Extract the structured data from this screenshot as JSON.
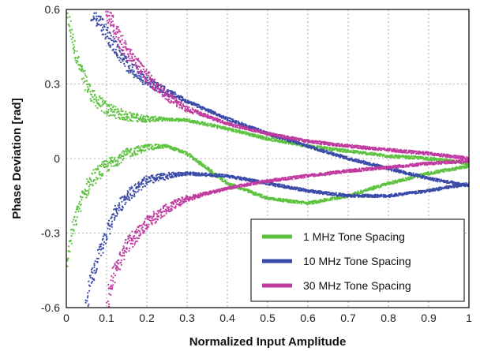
{
  "chart_data": {
    "type": "scatter",
    "title": "",
    "xlabel": "Normalized Input Amplitude",
    "ylabel": "Phase Deviation [rad]",
    "xlim": [
      0,
      1
    ],
    "ylim": [
      -0.6,
      0.6
    ],
    "xticks": [
      "0",
      "0.1",
      "0.2",
      "0.3",
      "0.4",
      "0.5",
      "0.6",
      "0.7",
      "0.8",
      "0.9",
      "1"
    ],
    "yticks": [
      "0.6",
      "0.3",
      "0",
      "-0.3",
      "-0.6"
    ],
    "grid": true,
    "legend_position": "bottom-right",
    "series": [
      {
        "name": "1 MHz Tone Spacing",
        "color": "#5cc23e",
        "upper": [
          [
            0.0,
            0.6
          ],
          [
            0.01,
            0.52
          ],
          [
            0.02,
            0.45
          ],
          [
            0.03,
            0.38
          ],
          [
            0.05,
            0.3
          ],
          [
            0.07,
            0.24
          ],
          [
            0.1,
            0.2
          ],
          [
            0.15,
            0.17
          ],
          [
            0.2,
            0.16
          ],
          [
            0.3,
            0.155
          ],
          [
            0.4,
            0.12
          ],
          [
            0.5,
            0.08
          ],
          [
            0.6,
            0.05
          ],
          [
            0.7,
            0.03
          ],
          [
            0.8,
            0.01
          ],
          [
            0.9,
            0.0
          ],
          [
            1.0,
            -0.02
          ]
        ],
        "lower": [
          [
            0.0,
            -0.42
          ],
          [
            0.01,
            -0.34
          ],
          [
            0.02,
            -0.26
          ],
          [
            0.03,
            -0.2
          ],
          [
            0.05,
            -0.12
          ],
          [
            0.07,
            -0.07
          ],
          [
            0.1,
            -0.03
          ],
          [
            0.15,
            0.02
          ],
          [
            0.2,
            0.045
          ],
          [
            0.25,
            0.05
          ],
          [
            0.3,
            0.02
          ],
          [
            0.35,
            -0.04
          ],
          [
            0.4,
            -0.1
          ],
          [
            0.5,
            -0.16
          ],
          [
            0.6,
            -0.18
          ],
          [
            0.7,
            -0.15
          ],
          [
            0.8,
            -0.1
          ],
          [
            0.9,
            -0.06
          ],
          [
            1.0,
            -0.03
          ]
        ]
      },
      {
        "name": "10 MHz Tone Spacing",
        "color": "#3a4aa8",
        "upper": [
          [
            0.06,
            0.6
          ],
          [
            0.08,
            0.56
          ],
          [
            0.1,
            0.5
          ],
          [
            0.15,
            0.38
          ],
          [
            0.2,
            0.31
          ],
          [
            0.3,
            0.23
          ],
          [
            0.4,
            0.16
          ],
          [
            0.5,
            0.1
          ],
          [
            0.6,
            0.05
          ],
          [
            0.7,
            0.0
          ],
          [
            0.8,
            -0.04
          ],
          [
            0.9,
            -0.08
          ],
          [
            1.0,
            -0.11
          ]
        ],
        "lower": [
          [
            0.05,
            -0.6
          ],
          [
            0.06,
            -0.5
          ],
          [
            0.08,
            -0.4
          ],
          [
            0.1,
            -0.3
          ],
          [
            0.12,
            -0.22
          ],
          [
            0.15,
            -0.15
          ],
          [
            0.2,
            -0.09
          ],
          [
            0.25,
            -0.07
          ],
          [
            0.3,
            -0.06
          ],
          [
            0.4,
            -0.07
          ],
          [
            0.5,
            -0.1
          ],
          [
            0.6,
            -0.13
          ],
          [
            0.7,
            -0.15
          ],
          [
            0.8,
            -0.15
          ],
          [
            0.9,
            -0.13
          ],
          [
            1.0,
            -0.1
          ]
        ]
      },
      {
        "name": "30 MHz Tone Spacing",
        "color": "#c03aa0",
        "upper": [
          [
            0.1,
            0.6
          ],
          [
            0.12,
            0.52
          ],
          [
            0.15,
            0.43
          ],
          [
            0.2,
            0.33
          ],
          [
            0.25,
            0.25
          ],
          [
            0.3,
            0.2
          ],
          [
            0.4,
            0.14
          ],
          [
            0.5,
            0.1
          ],
          [
            0.6,
            0.07
          ],
          [
            0.7,
            0.05
          ],
          [
            0.8,
            0.035
          ],
          [
            0.9,
            0.02
          ],
          [
            1.0,
            0.0
          ]
        ],
        "lower": [
          [
            0.1,
            -0.6
          ],
          [
            0.11,
            -0.5
          ],
          [
            0.13,
            -0.42
          ],
          [
            0.15,
            -0.35
          ],
          [
            0.2,
            -0.26
          ],
          [
            0.25,
            -0.2
          ],
          [
            0.3,
            -0.16
          ],
          [
            0.4,
            -0.12
          ],
          [
            0.5,
            -0.09
          ],
          [
            0.6,
            -0.07
          ],
          [
            0.7,
            -0.05
          ],
          [
            0.8,
            -0.035
          ],
          [
            0.9,
            -0.02
          ],
          [
            1.0,
            -0.01
          ]
        ]
      }
    ]
  }
}
